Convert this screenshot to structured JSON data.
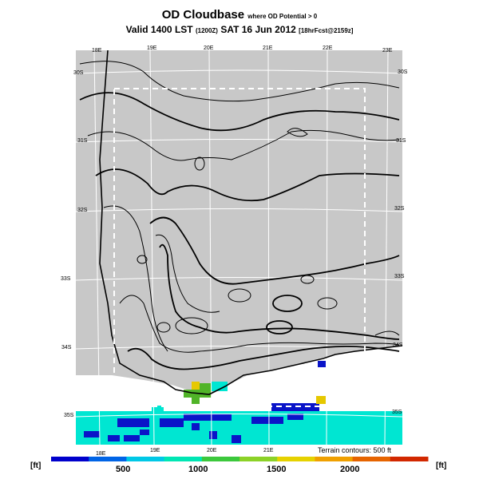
{
  "header": {
    "title": "OD Cloudbase",
    "title_suffix": "where OD Potential > 0",
    "valid_line": "Valid 1400 LST",
    "valid_time_code": "(1200Z)",
    "valid_date": "SAT 16 Jun 2012",
    "model_run": "[18hrFcst@2159z]"
  },
  "map": {
    "lon_labels_top": [
      "18E",
      "19E",
      "20E",
      "21E",
      "22E",
      "23E"
    ],
    "lon_labels_bottom": [
      "18E",
      "19E",
      "20E",
      "21E"
    ],
    "lat_labels_left": [
      "30S",
      "31S",
      "32S",
      "33S",
      "34S",
      "35S"
    ],
    "lat_labels_right": [
      "30S",
      "31S",
      "32S",
      "33S",
      "34S",
      "35S"
    ],
    "terrain_note": "Terrain contours: 500 ft",
    "colors": {
      "land": "#c8c8c8",
      "cloudbase_500": "#0a14c8",
      "cloudbase_1000": "#00e6d2",
      "cloudbase_1500": "#50b428",
      "cloudbase_2000": "#e6c800"
    }
  },
  "legend": {
    "unit_left": "[ft]",
    "unit_right": "[ft]",
    "ticks": [
      "500",
      "1000",
      "1500",
      "2000"
    ],
    "colors": [
      "#0000cc",
      "#0064e6",
      "#00c8e6",
      "#00e6b4",
      "#3cc83c",
      "#8cd228",
      "#e6d200",
      "#f0a000",
      "#e66400",
      "#d22800"
    ]
  }
}
